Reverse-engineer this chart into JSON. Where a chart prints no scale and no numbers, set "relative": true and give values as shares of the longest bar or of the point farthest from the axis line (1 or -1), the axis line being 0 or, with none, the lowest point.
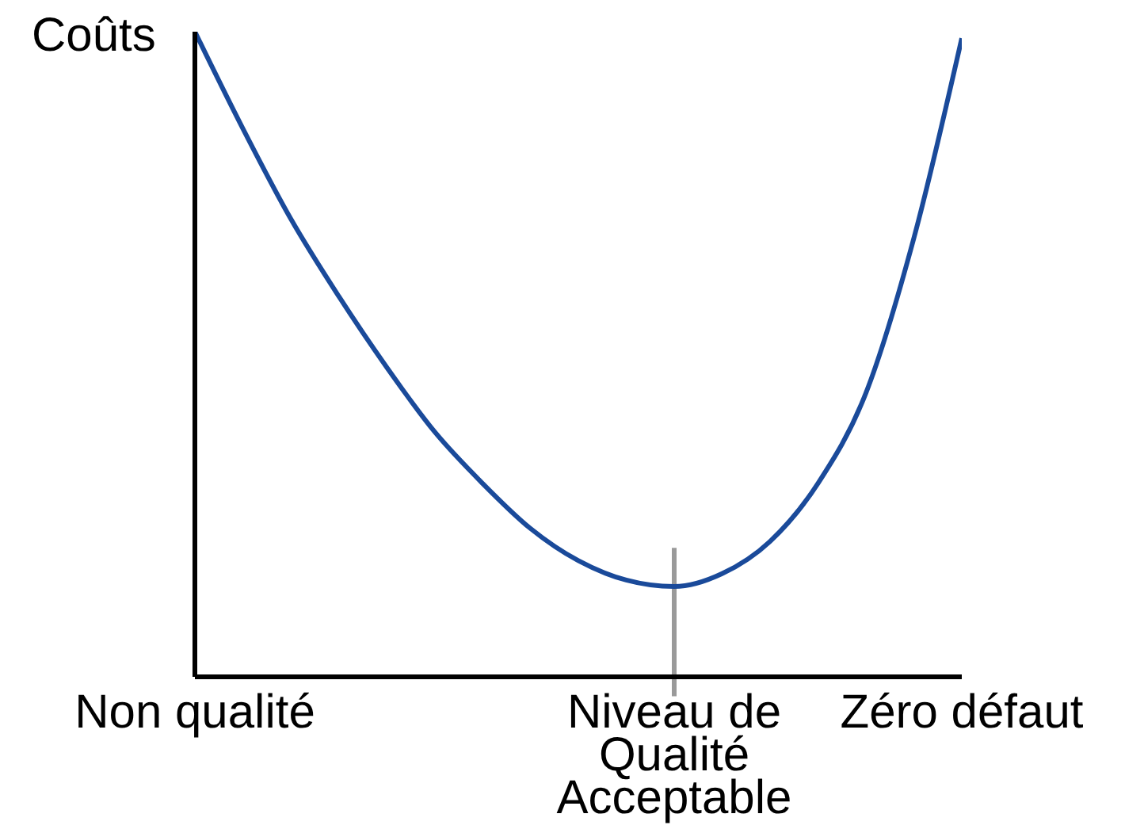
{
  "chart_data": {
    "type": "line",
    "relative": true,
    "ylabel": "Coûts",
    "categories": [
      "Non qualité",
      null,
      null,
      null,
      null,
      null,
      null,
      null,
      null,
      null,
      "Niveau de Qualité Acceptable",
      null,
      null,
      null,
      null,
      null,
      "Zéro défaut"
    ],
    "values": [
      1,
      0.85,
      0.71,
      0.59,
      0.48,
      0.38,
      0.3,
      0.23,
      0.18,
      0.15,
      0.14,
      0.16,
      0.21,
      0.3,
      0.44,
      0.68,
      0.99
    ],
    "color": "#1a4a9a",
    "ref_lines": [
      {
        "axis": "x",
        "value": "Niveau de Qualité Acceptable",
        "color": "#9a9a9a"
      }
    ]
  }
}
